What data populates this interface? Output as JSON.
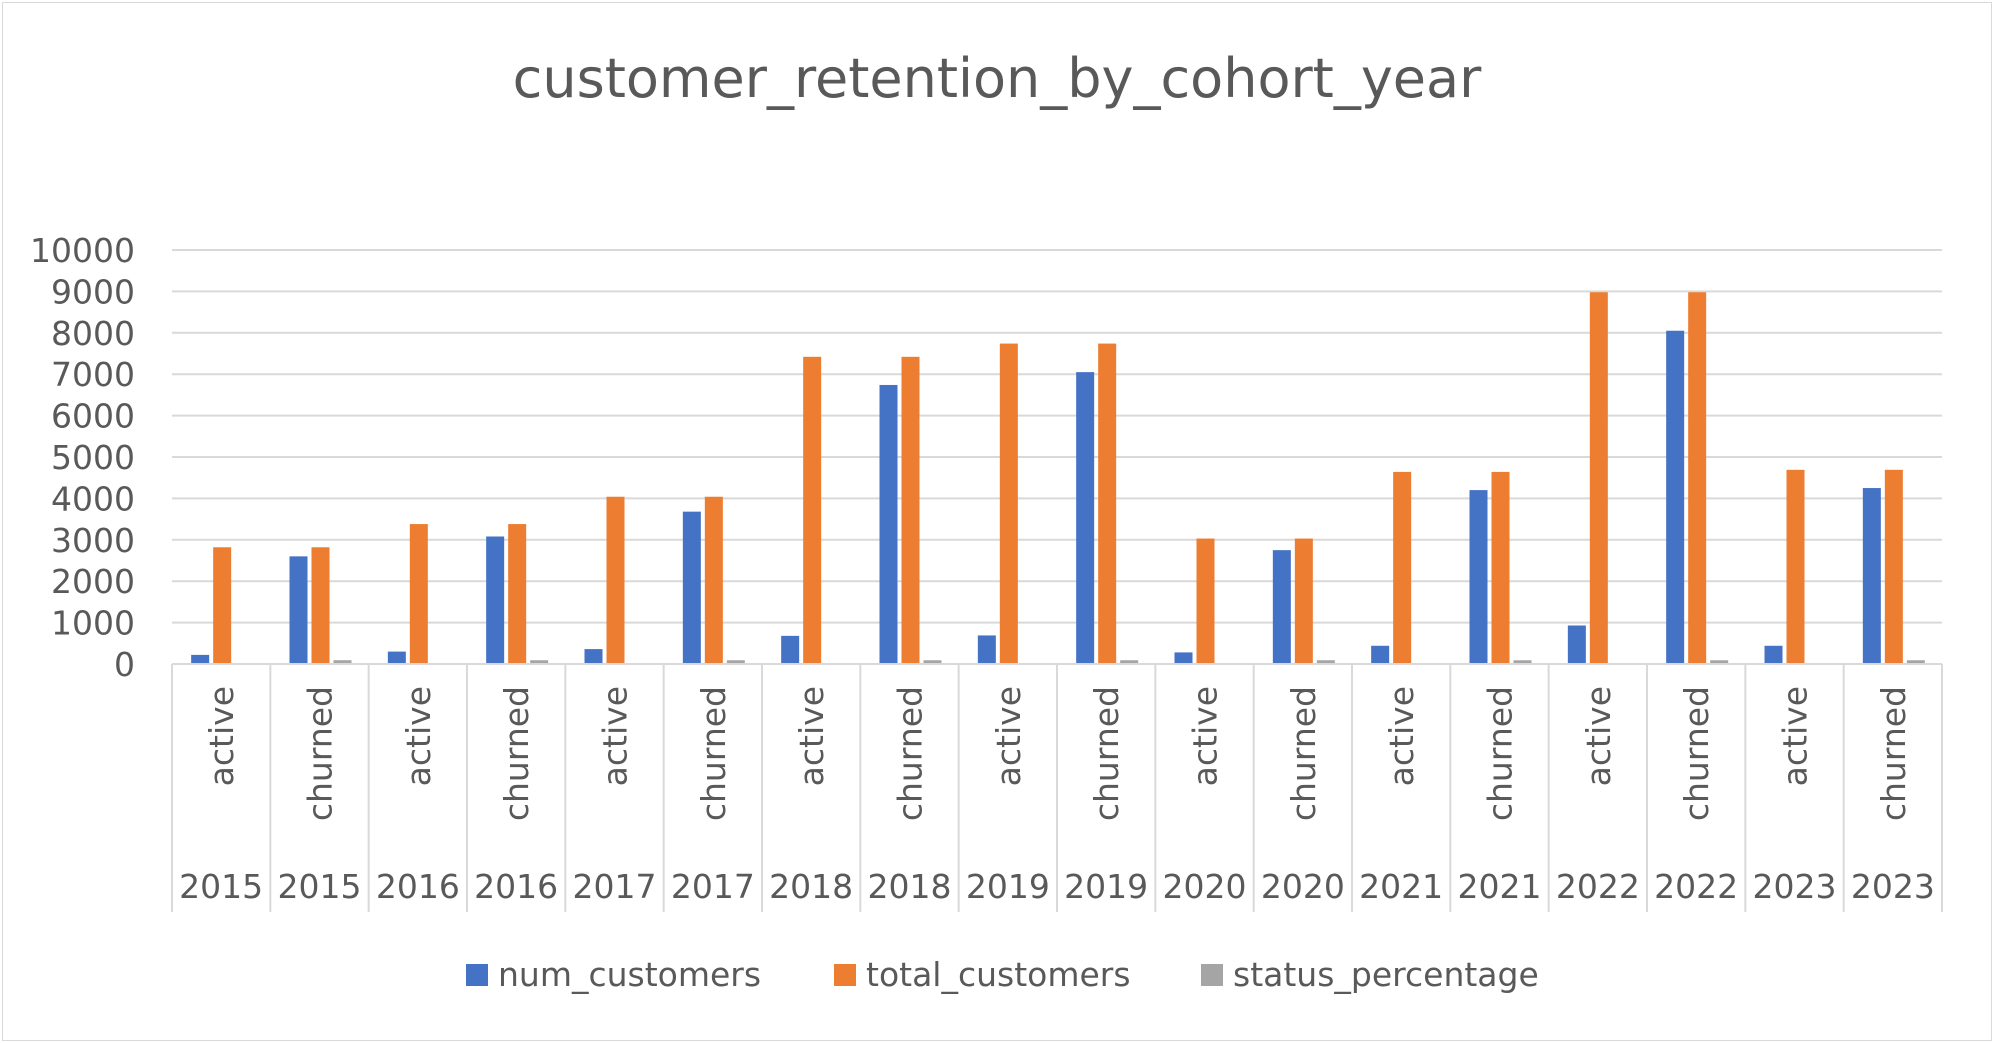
{
  "chart_data": {
    "type": "bar",
    "title": "customer_retention_by_cohort_year",
    "xlabel": "",
    "ylabel": "",
    "ylim": [
      0,
      10000
    ],
    "yticks": [
      0,
      1000,
      2000,
      3000,
      4000,
      5000,
      6000,
      7000,
      8000,
      9000,
      10000
    ],
    "grid": true,
    "legend_position": "bottom",
    "categories": [
      {
        "status": "active",
        "year": "2015"
      },
      {
        "status": "churned",
        "year": "2015"
      },
      {
        "status": "active",
        "year": "2016"
      },
      {
        "status": "churned",
        "year": "2016"
      },
      {
        "status": "active",
        "year": "2017"
      },
      {
        "status": "churned",
        "year": "2017"
      },
      {
        "status": "active",
        "year": "2018"
      },
      {
        "status": "churned",
        "year": "2018"
      },
      {
        "status": "active",
        "year": "2019"
      },
      {
        "status": "churned",
        "year": "2019"
      },
      {
        "status": "active",
        "year": "2020"
      },
      {
        "status": "churned",
        "year": "2020"
      },
      {
        "status": "active",
        "year": "2021"
      },
      {
        "status": "churned",
        "year": "2021"
      },
      {
        "status": "active",
        "year": "2022"
      },
      {
        "status": "churned",
        "year": "2022"
      },
      {
        "status": "active",
        "year": "2023"
      },
      {
        "status": "churned",
        "year": "2023"
      }
    ],
    "series": [
      {
        "name": "num_customers",
        "color": "#4472C4",
        "values": [
          220,
          2600,
          300,
          3080,
          360,
          3680,
          680,
          6740,
          690,
          7050,
          280,
          2750,
          440,
          4200,
          930,
          8050,
          440,
          4250
        ]
      },
      {
        "name": "total_customers",
        "color": "#ED7D31",
        "values": [
          2820,
          2820,
          3380,
          3380,
          4040,
          4040,
          7420,
          7420,
          7740,
          7740,
          3030,
          3030,
          4640,
          4640,
          8980,
          8980,
          4690,
          4690
        ]
      },
      {
        "name": "status_percentage",
        "color": "#A5A5A5",
        "values": [
          7.8,
          92.2,
          8.9,
          91.1,
          8.9,
          91.1,
          9.2,
          90.8,
          8.9,
          91.1,
          9.2,
          90.8,
          9.5,
          90.5,
          10.4,
          89.6,
          9.4,
          90.6
        ]
      }
    ]
  }
}
